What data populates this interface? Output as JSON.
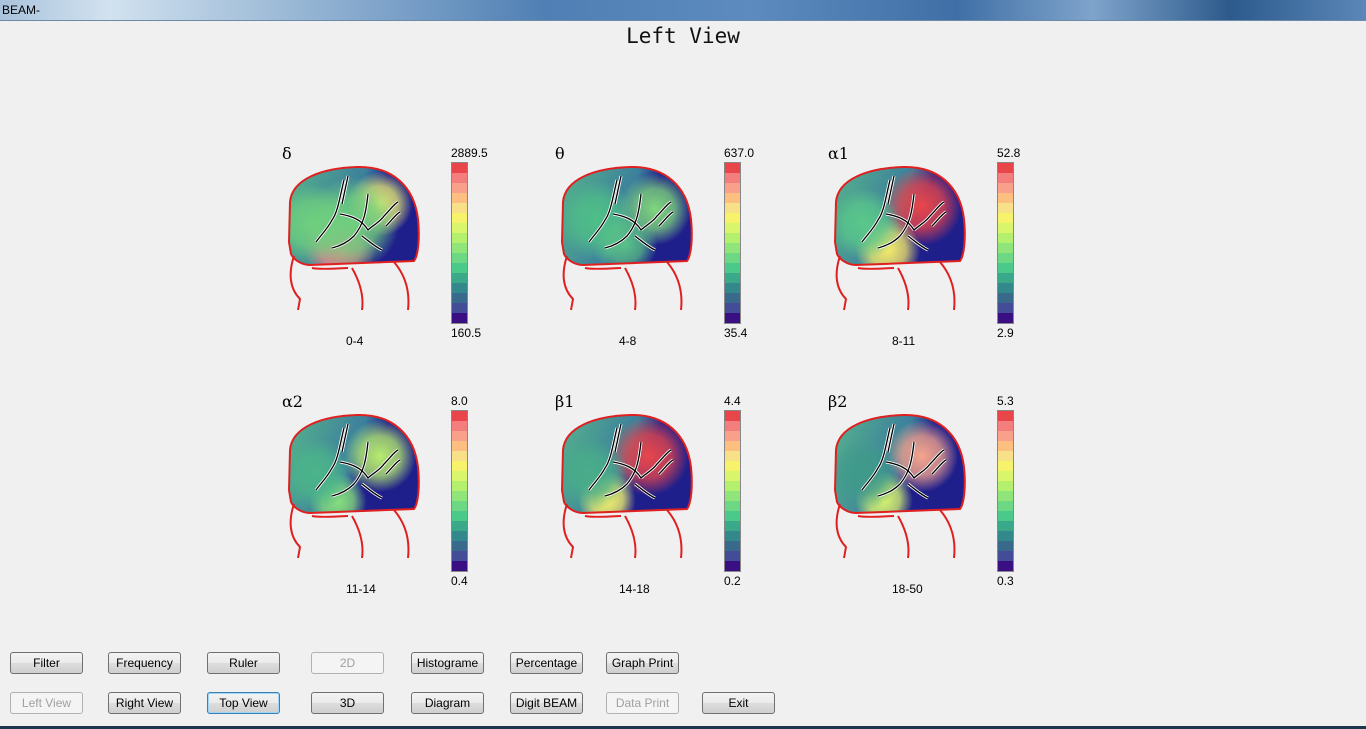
{
  "window": {
    "title": "BEAM-"
  },
  "view_title": "Left View",
  "panels": [
    {
      "band": "δ",
      "max": "2889.5",
      "min": "160.5",
      "range": "0-4",
      "hot": "#f0898a",
      "warm": "#e6ea73",
      "mid": "#6fd07e"
    },
    {
      "band": "θ",
      "max": "637.0",
      "min": "35.4",
      "range": "4-8",
      "hot": "#7fd77d",
      "warm": "#59c287",
      "mid": "#4fbf88"
    },
    {
      "band": "α1",
      "max": "52.8",
      "min": "2.9",
      "range": "8-11",
      "hot": "#e8464b",
      "warm": "#f4e96a",
      "mid": "#5ac88a"
    },
    {
      "band": "α2",
      "max": "8.0",
      "min": "0.4",
      "range": "11-14",
      "hot": "#b7ec6f",
      "warm": "#86dd7c",
      "mid": "#4bb58a"
    },
    {
      "band": "β1",
      "max": "4.4",
      "min": "0.2",
      "range": "14-18",
      "hot": "#e8464b",
      "warm": "#f3ee6b",
      "mid": "#48ad89"
    },
    {
      "band": "β2",
      "max": "5.3",
      "min": "0.3",
      "range": "18-50",
      "hot": "#f6a58c",
      "warm": "#d6f26e",
      "mid": "#3f9a8a"
    }
  ],
  "buttons_row1": [
    {
      "label": "Filter",
      "state": "normal"
    },
    {
      "label": "Frequency",
      "state": "normal"
    },
    {
      "label": "Ruler",
      "state": "normal"
    },
    {
      "label": "2D",
      "state": "disabled"
    },
    {
      "label": "Histograme",
      "state": "normal"
    },
    {
      "label": "Percentage",
      "state": "normal"
    },
    {
      "label": "Graph Print",
      "state": "normal"
    }
  ],
  "buttons_row2": [
    {
      "label": "Left View",
      "state": "disabled"
    },
    {
      "label": "Right View",
      "state": "normal"
    },
    {
      "label": "Top View",
      "state": "focused"
    },
    {
      "label": "3D",
      "state": "normal"
    },
    {
      "label": "Diagram",
      "state": "normal"
    },
    {
      "label": "Digit BEAM",
      "state": "normal"
    },
    {
      "label": "Data Print",
      "state": "disabled"
    },
    {
      "label": "Exit",
      "state": "normal"
    }
  ],
  "colors": {
    "head_outline": "#e02020",
    "cold": "#1f1f8c",
    "sulcus": "#000000"
  }
}
